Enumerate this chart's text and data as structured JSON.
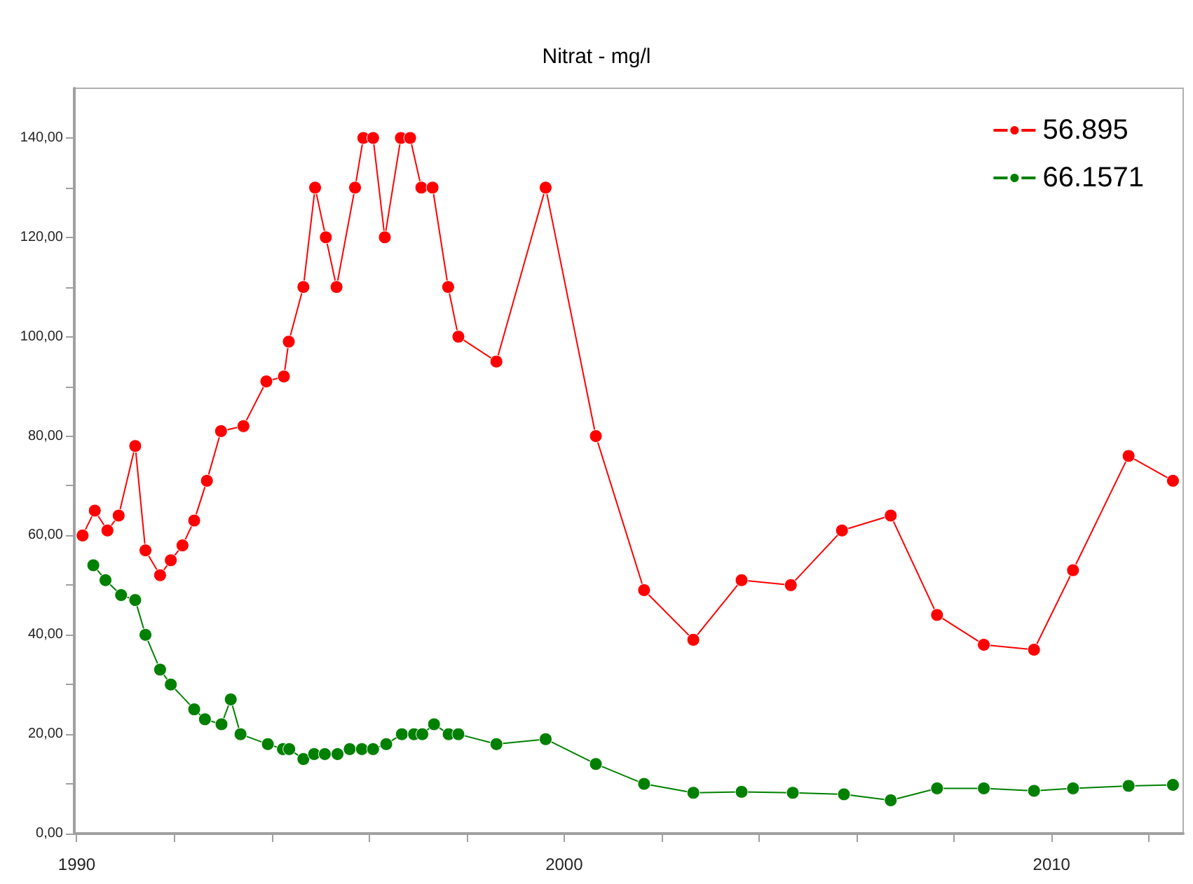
{
  "chart_data": {
    "type": "line",
    "title": "Nitrat - mg/l",
    "xlim": [
      1989.95,
      2012.7
    ],
    "ylim": [
      0,
      150
    ],
    "xticks": [
      1990,
      {
        "value": 1992,
        "label": null
      },
      {
        "value": 1994,
        "label": null
      },
      {
        "value": 1996,
        "label": null
      },
      {
        "value": 1998,
        "label": null
      },
      2000,
      {
        "value": 2002,
        "label": null
      },
      {
        "value": 2004,
        "label": null
      },
      {
        "value": 2006,
        "label": null
      },
      {
        "value": 2008,
        "label": null
      },
      2010,
      {
        "value": 2012,
        "label": null
      }
    ],
    "yticks": [
      {
        "value": 0,
        "label": "0,00"
      },
      {
        "value": 10,
        "label": null
      },
      {
        "value": 20,
        "label": "20,00"
      },
      {
        "value": 30,
        "label": null
      },
      {
        "value": 40,
        "label": "40,00"
      },
      {
        "value": 50,
        "label": null
      },
      {
        "value": 60,
        "label": "60,00"
      },
      {
        "value": 70,
        "label": null
      },
      {
        "value": 80,
        "label": "80,00"
      },
      {
        "value": 90,
        "label": null
      },
      {
        "value": 100,
        "label": "100,00"
      },
      {
        "value": 110,
        "label": null
      },
      {
        "value": 120,
        "label": "120,00"
      },
      {
        "value": 130,
        "label": null
      },
      {
        "value": 140,
        "label": "140,00"
      }
    ],
    "grid": false,
    "legend": "top right",
    "marker": "circle",
    "line_style": "solid",
    "series": [
      {
        "name": "56.895",
        "color": "#ff0000",
        "x": [
          1990.12,
          1990.37,
          1990.63,
          1990.86,
          1991.2,
          1991.41,
          1991.71,
          1991.93,
          1992.17,
          1992.41,
          1992.67,
          1992.96,
          1993.42,
          1993.89,
          1994.25,
          1994.35,
          1994.65,
          1994.89,
          1995.11,
          1995.33,
          1995.71,
          1995.88,
          1996.08,
          1996.32,
          1996.65,
          1996.84,
          1997.07,
          1997.3,
          1997.62,
          1997.83,
          1998.61,
          1999.62,
          2000.65,
          2001.64,
          2002.65,
          2003.64,
          2004.65,
          2005.7,
          2006.7,
          2007.65,
          2008.61,
          2009.64,
          2010.44,
          2011.58,
          2012.49
        ],
        "values": [
          60,
          65,
          61,
          64,
          78,
          57,
          52,
          55,
          58,
          63,
          71,
          81,
          82,
          91,
          92,
          99,
          110,
          130,
          120,
          110,
          130,
          140,
          140,
          120,
          140,
          140,
          130,
          130,
          110,
          100,
          95,
          130,
          80,
          49,
          39,
          51,
          50,
          61,
          64,
          44,
          38,
          37,
          53,
          76,
          71
        ]
      },
      {
        "name": "66.1571",
        "color": "#008000",
        "x": [
          1990.34,
          1990.59,
          1990.91,
          1991.2,
          1991.41,
          1991.71,
          1991.93,
          1992.41,
          1992.63,
          1992.97,
          1993.16,
          1993.36,
          1993.92,
          1994.23,
          1994.36,
          1994.65,
          1994.87,
          1995.09,
          1995.35,
          1995.6,
          1995.85,
          1996.08,
          1996.35,
          1996.67,
          1996.92,
          1997.09,
          1997.33,
          1997.63,
          1997.83,
          1998.61,
          1999.62,
          2000.65,
          2001.64,
          2002.65,
          2003.64,
          2004.69,
          2005.74,
          2006.7,
          2007.65,
          2008.61,
          2009.64,
          2010.44,
          2011.58,
          2012.49
        ],
        "values": [
          54,
          51,
          48,
          47,
          40,
          33,
          30,
          25,
          23,
          22,
          27,
          20,
          18,
          17,
          17,
          15,
          16,
          16,
          16,
          17,
          17,
          17,
          18,
          20,
          20,
          20,
          22,
          20,
          20,
          18,
          19,
          14,
          10,
          8.2,
          8.4,
          8.2,
          7.9,
          6.7,
          9.1,
          9.1,
          8.6,
          9.1,
          9.6,
          9.8
        ]
      }
    ]
  }
}
